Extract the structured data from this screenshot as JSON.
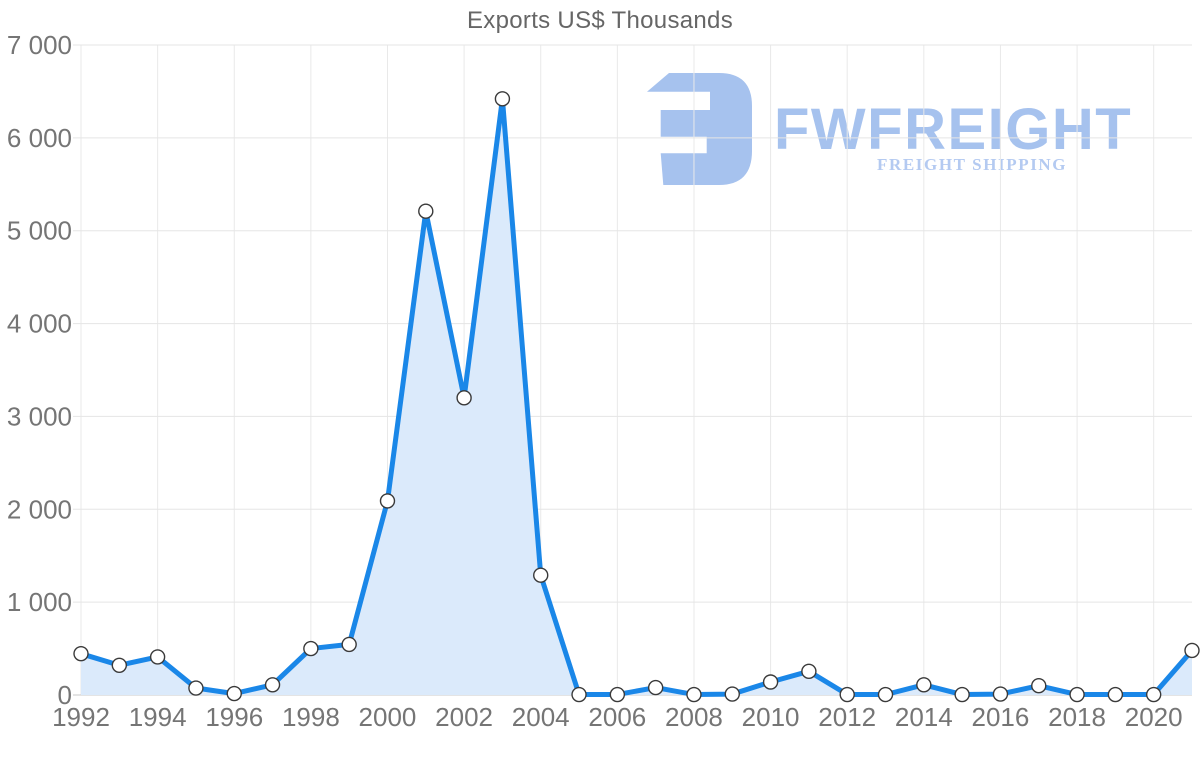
{
  "chart": {
    "title": "Exports US$ Thousands"
  },
  "logo": {
    "wordmark": "FWFREIGHT",
    "subtitle": "FREIGHT SHIPPING",
    "icon_color": "#a6c2ee",
    "wordmark_color": "#a6c2ee",
    "subtitle_color": "#b4caf1"
  },
  "chart_data": {
    "type": "area",
    "title": "Exports US$ Thousands",
    "x": [
      1992,
      1993,
      1994,
      1995,
      1996,
      1997,
      1998,
      1999,
      2000,
      2001,
      2002,
      2003,
      2004,
      2005,
      2006,
      2007,
      2008,
      2009,
      2010,
      2011,
      2012,
      2013,
      2014,
      2015,
      2016,
      2017,
      2018,
      2019,
      2020,
      2021
    ],
    "values": [
      445,
      320,
      410,
      75,
      15,
      110,
      500,
      545,
      2090,
      5210,
      3200,
      6420,
      1290,
      5,
      5,
      80,
      5,
      10,
      140,
      255,
      5,
      5,
      110,
      5,
      10,
      100,
      5,
      5,
      5,
      480
    ],
    "x_tick_labels": [
      "1992",
      "1994",
      "1996",
      "1998",
      "2000",
      "2002",
      "2004",
      "2006",
      "2008",
      "2010",
      "2012",
      "2014",
      "2016",
      "2018",
      "2020"
    ],
    "y_tick_labels": [
      "0",
      "1 000",
      "2 000",
      "3 000",
      "4 000",
      "5 000",
      "6 000",
      "7 000"
    ],
    "ylim": [
      0,
      7000
    ],
    "y_step": 1000,
    "grid": true,
    "legend": "none",
    "line_color": "#1a87e8",
    "fill_color": "#dbeafb",
    "marker_fill": "#ffffff",
    "marker_stroke": "#3a3a3a",
    "grid_color": "#e5e5e5",
    "axis_color": "#c9c9c9",
    "tick_label_color": "#757575"
  }
}
